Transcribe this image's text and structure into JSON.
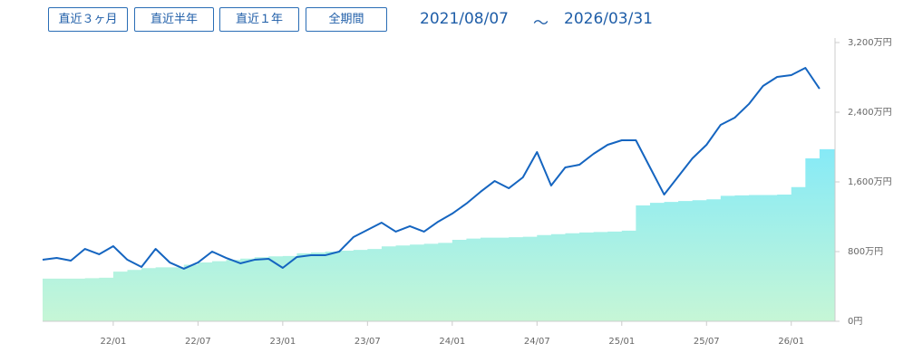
{
  "buttons": [
    "直近３ヶ月",
    "直近半年",
    "直近１年",
    "全期間"
  ],
  "date_range": {
    "start": "2021/08/07",
    "separator": "～",
    "end": "2026/03/31"
  },
  "chart_data": {
    "type": "line",
    "categories": [
      null,
      null,
      null,
      null,
      null,
      "22/01",
      null,
      null,
      null,
      null,
      null,
      "22/07",
      null,
      null,
      null,
      null,
      null,
      "23/01",
      null,
      null,
      null,
      null,
      null,
      "23/07",
      null,
      null,
      null,
      null,
      null,
      "24/01",
      null,
      null,
      null,
      null,
      null,
      "24/07",
      null,
      null,
      null,
      null,
      null,
      "25/01",
      null,
      null,
      null,
      null,
      null,
      "25/07",
      null,
      null,
      null,
      null,
      null,
      "26/01",
      null,
      null
    ],
    "ylim": [
      0,
      3200
    ],
    "yticks": [
      {
        "value": 0,
        "label": "0円"
      },
      {
        "value": 800,
        "label": "800万円"
      },
      {
        "value": 1600,
        "label": "1,600万円"
      },
      {
        "value": 2400,
        "label": "2,400万円"
      },
      {
        "value": 3200,
        "label": "3,200万円"
      }
    ],
    "grid": false,
    "series": [
      {
        "type": "area",
        "color": "#86eaf7",
        "values": [
          490,
          490,
          490,
          495,
          500,
          570,
          590,
          610,
          620,
          620,
          650,
          675,
          690,
          705,
          720,
          735,
          745,
          750,
          780,
          790,
          800,
          810,
          820,
          830,
          860,
          870,
          880,
          890,
          900,
          935,
          950,
          960,
          960,
          965,
          970,
          990,
          1000,
          1010,
          1020,
          1025,
          1030,
          1040,
          1330,
          1360,
          1370,
          1380,
          1390,
          1400,
          1440,
          1445,
          1450,
          1450,
          1455,
          1540,
          1870,
          1975
        ]
      },
      {
        "type": "line",
        "color": "#1565c0",
        "values": [
          706,
          727,
          696,
          831,
          769,
          862,
          706,
          623,
          831,
          675,
          603,
          675,
          800,
          727,
          665,
          706,
          717,
          613,
          738,
          758,
          758,
          800,
          966,
          1049,
          1132,
          1029,
          1091,
          1029,
          1143,
          1236,
          1351,
          1486,
          1610,
          1527,
          1652,
          1943,
          1558,
          1766,
          1797,
          1922,
          2026,
          2078,
          2078,
          1766,
          1455,
          1662,
          1870,
          2026,
          2255,
          2338,
          2494,
          2701,
          2805,
          2826,
          2909,
          2670
        ]
      }
    ]
  }
}
